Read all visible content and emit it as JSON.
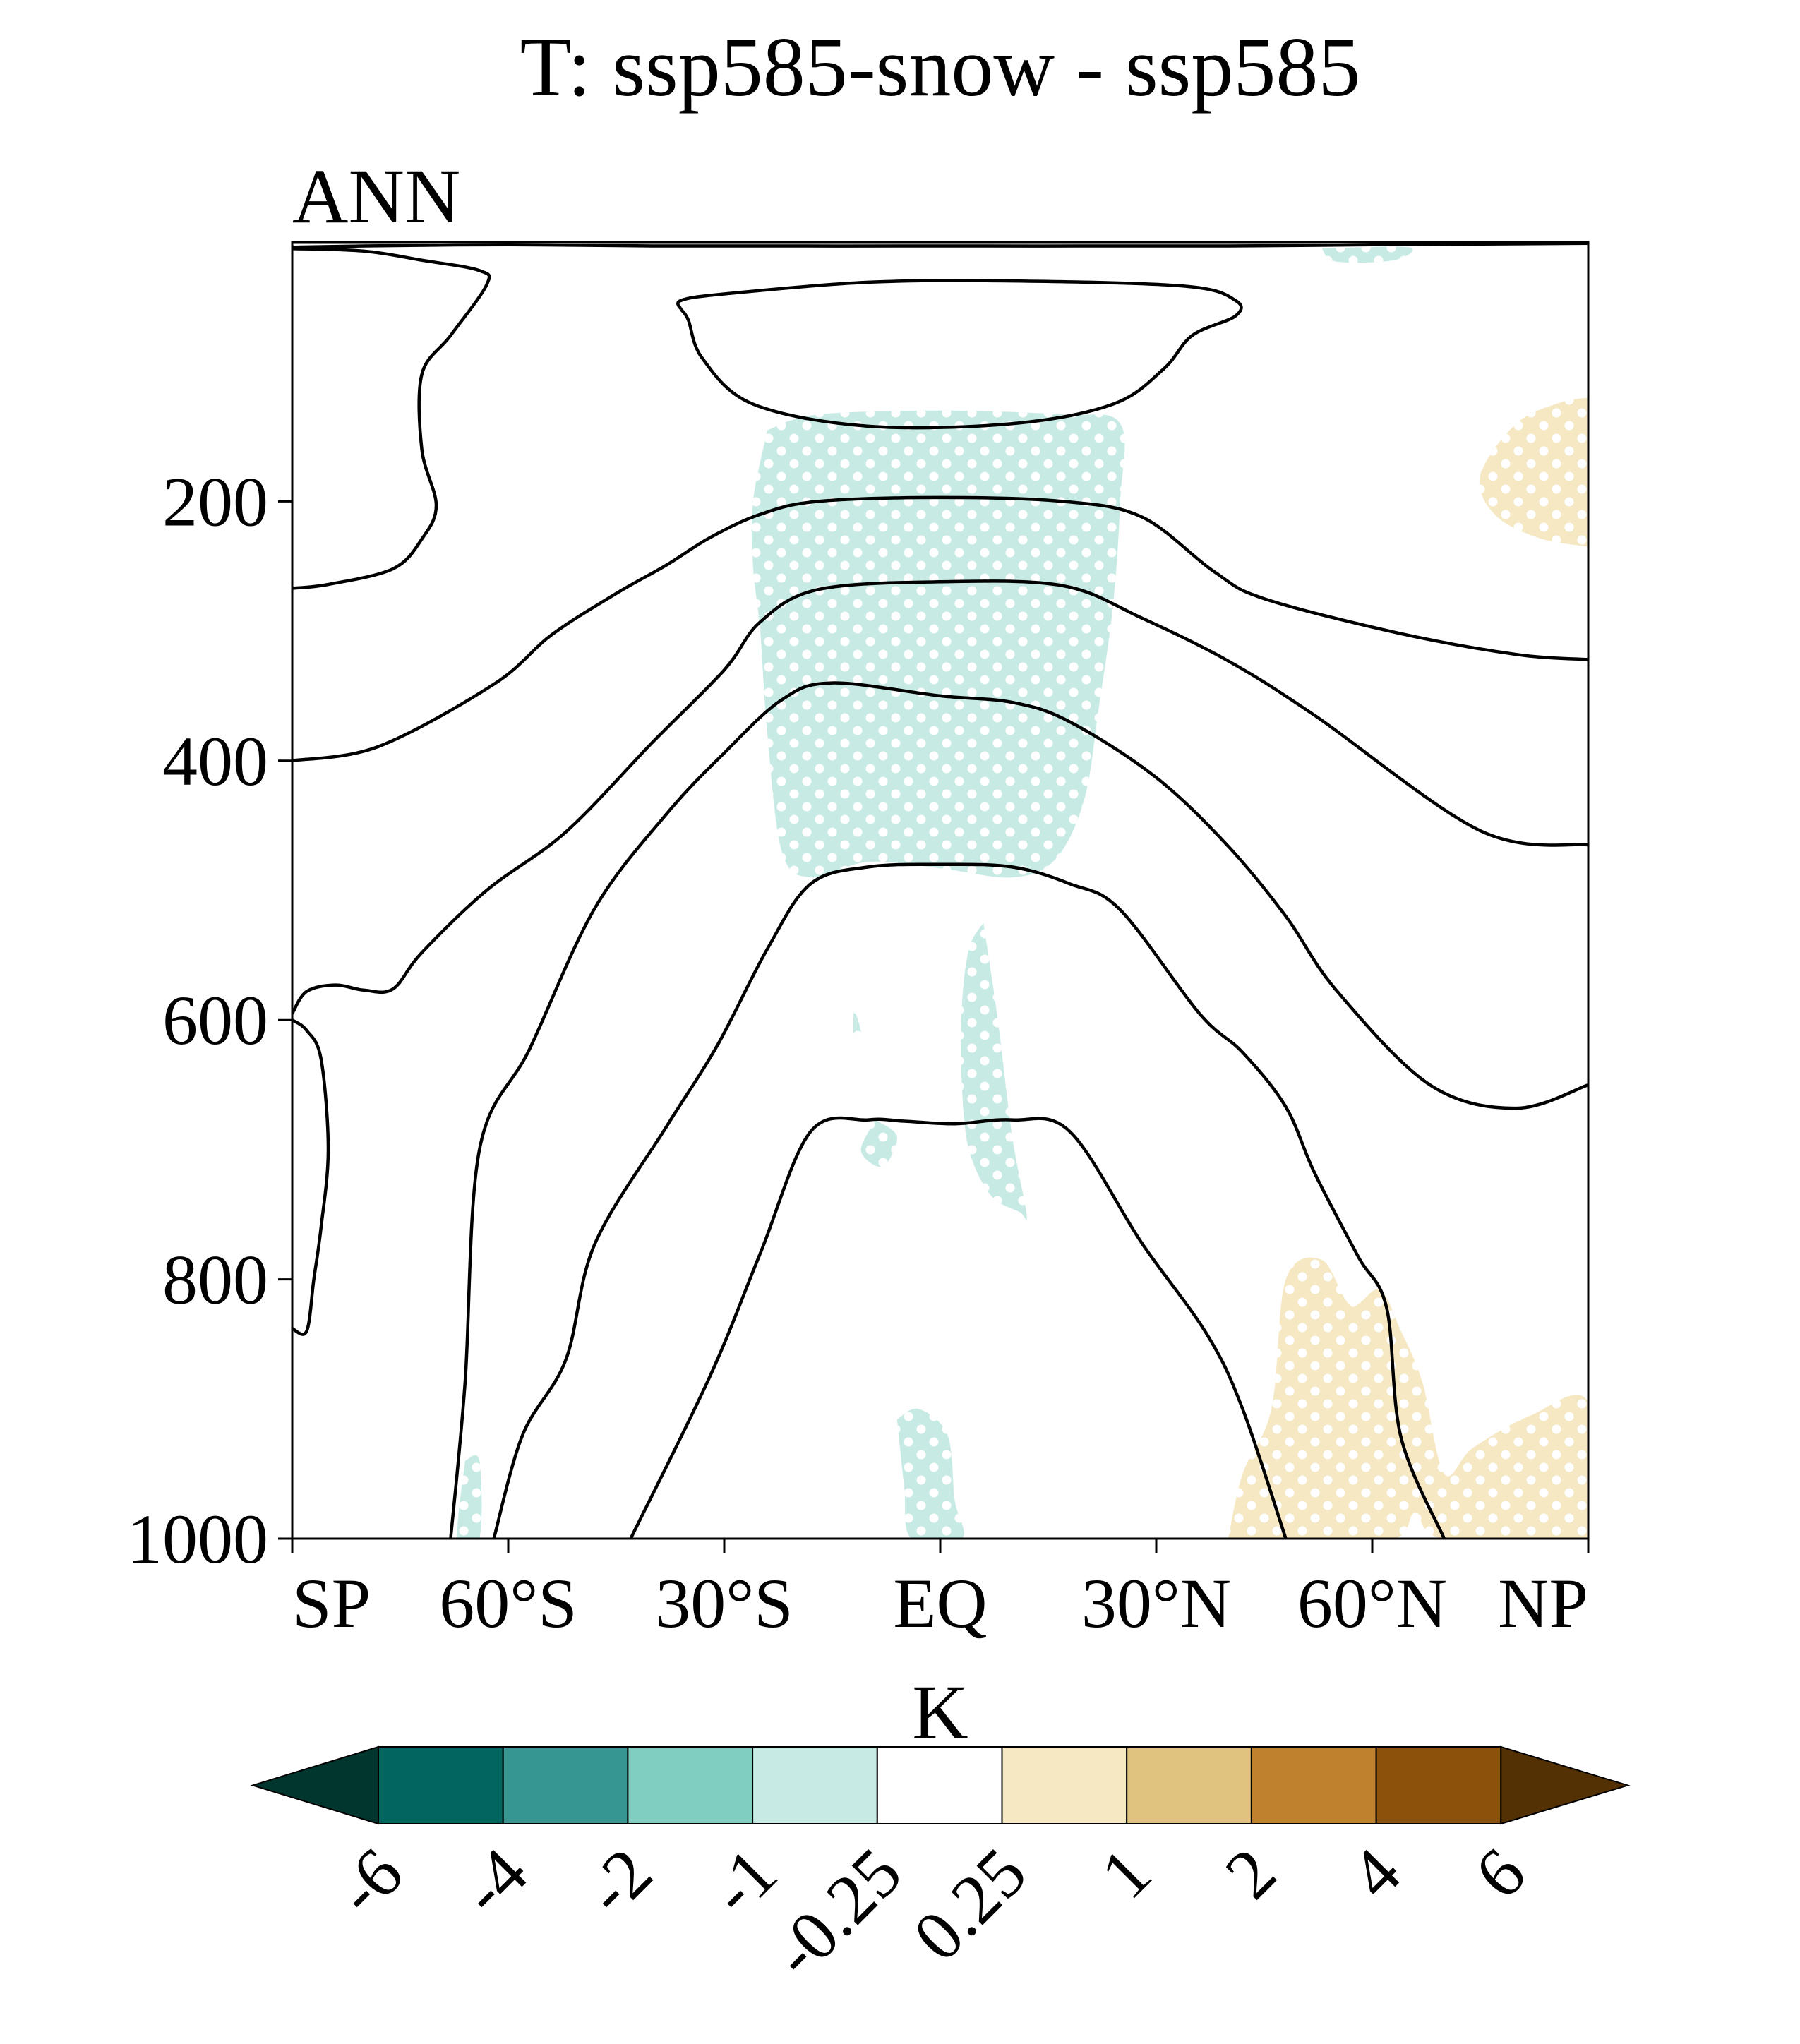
{
  "chart_data": {
    "type": "contour",
    "title": "T: ssp585-snow - ssp585",
    "subtitle": "ANN",
    "xlabel": "",
    "ylabel": "",
    "x_ticks": [
      {
        "value": -90,
        "label": "SP"
      },
      {
        "value": -60,
        "label": "60°S"
      },
      {
        "value": -30,
        "label": "30°S"
      },
      {
        "value": 0,
        "label": "EQ"
      },
      {
        "value": 30,
        "label": "30°N"
      },
      {
        "value": 60,
        "label": "60°N"
      },
      {
        "value": 90,
        "label": "NP"
      }
    ],
    "y_ticks": [
      200,
      400,
      600,
      800,
      1000
    ],
    "xlim": [
      -90,
      90
    ],
    "ylim": [
      1000,
      0
    ],
    "colorbar": {
      "label": "K",
      "levels": [
        "-6",
        "-4",
        "-2",
        "-1",
        "-0.25",
        "0.25",
        "1",
        "2",
        "4",
        "6"
      ],
      "colors": [
        "#01362f",
        "#01665e",
        "#35978f",
        "#80cdc1",
        "#c7eae5",
        "#ffffff",
        "#f6e8c3",
        "#dfc27d",
        "#bf812d",
        "#8c510a",
        "#543005"
      ],
      "extend": "both"
    },
    "contour_lines": [
      {
        "name": "upper-cap-contour",
        "points": [
          [
            -90,
            4
          ],
          [
            -80,
            3
          ],
          [
            -60,
            2
          ],
          [
            -40,
            3
          ],
          [
            0,
            3
          ],
          [
            40,
            3
          ],
          [
            60,
            2
          ],
          [
            90,
            1
          ]
        ]
      },
      {
        "name": "south-pole-upper-contour",
        "points": [
          [
            -90,
            267
          ],
          [
            -85,
            264
          ],
          [
            -76,
            252
          ],
          [
            -72,
            229
          ],
          [
            -70,
            203
          ],
          [
            -72,
            160
          ],
          [
            -72,
            102
          ],
          [
            -68,
            72
          ],
          [
            -63,
            33
          ],
          [
            -64,
            22
          ],
          [
            -72,
            14
          ],
          [
            -80,
            7
          ],
          [
            -90,
            5
          ]
        ]
      },
      {
        "name": "upper-tropical-closed-contour",
        "points": [
          [
            -36,
            52
          ],
          [
            -35,
            60
          ],
          [
            -33,
            90
          ],
          [
            -26,
            125
          ],
          [
            -10,
            142
          ],
          [
            10,
            140
          ],
          [
            24,
            125
          ],
          [
            31,
            98
          ],
          [
            35,
            72
          ],
          [
            41,
            57
          ],
          [
            41,
            45
          ],
          [
            34,
            34
          ],
          [
            10,
            30
          ],
          [
            -10,
            31
          ],
          [
            -30,
            40
          ],
          [
            -36,
            45
          ],
          [
            -36,
            52
          ]
        ]
      },
      {
        "name": "contour-level-2",
        "points": [
          [
            -90,
            400
          ],
          [
            -78,
            389
          ],
          [
            -62,
            341
          ],
          [
            -54,
            303
          ],
          [
            -45,
            271
          ],
          [
            -38,
            249
          ],
          [
            -32,
            228
          ],
          [
            -25,
            210
          ],
          [
            -17,
            200
          ],
          [
            0,
            197
          ],
          [
            17,
            200
          ],
          [
            28,
            212
          ],
          [
            38,
            254
          ],
          [
            45,
            275
          ],
          [
            64,
            302
          ],
          [
            80,
            318
          ],
          [
            90,
            322
          ]
        ]
      },
      {
        "name": "contour-level-3",
        "points": [
          [
            -90,
            595
          ],
          [
            -88,
            578
          ],
          [
            -84,
            573
          ],
          [
            -80,
            577
          ],
          [
            -76,
            576
          ],
          [
            -72,
            548
          ],
          [
            -63,
            500
          ],
          [
            -52,
            455
          ],
          [
            -40,
            386
          ],
          [
            -30,
            330
          ],
          [
            -25,
            293
          ],
          [
            -17,
            268
          ],
          [
            0,
            262
          ],
          [
            17,
            265
          ],
          [
            28,
            290
          ],
          [
            40,
            323
          ],
          [
            52,
            365
          ],
          [
            75,
            454
          ],
          [
            90,
            465
          ]
        ]
      },
      {
        "name": "contour-level-4",
        "points": [
          [
            -68,
            1000
          ],
          [
            -66,
            880
          ],
          [
            -64,
            700
          ],
          [
            -57,
            622
          ],
          [
            -48,
            514
          ],
          [
            -38,
            441
          ],
          [
            -30,
            394
          ],
          [
            -22,
            353
          ],
          [
            -15,
            340
          ],
          [
            0,
            350
          ],
          [
            10,
            355
          ],
          [
            18,
            370
          ],
          [
            30,
            413
          ],
          [
            40,
            466
          ],
          [
            48,
            520
          ],
          [
            55,
            577
          ],
          [
            68,
            650
          ],
          [
            80,
            668
          ],
          [
            90,
            650
          ]
        ]
      },
      {
        "name": "contour-level-5",
        "points": [
          [
            -62,
            1000
          ],
          [
            -58,
            920
          ],
          [
            -52,
            862
          ],
          [
            -48,
            773
          ],
          [
            -38,
            682
          ],
          [
            -31,
            620
          ],
          [
            -24,
            545
          ],
          [
            -18,
            495
          ],
          [
            -10,
            482
          ],
          [
            0,
            480
          ],
          [
            10,
            482
          ],
          [
            18,
            495
          ],
          [
            25,
            515
          ],
          [
            36,
            595
          ],
          [
            42,
            625
          ],
          [
            48,
            667
          ],
          [
            52,
            718
          ],
          [
            58,
            782
          ],
          [
            62,
            822
          ],
          [
            64,
            922
          ],
          [
            70,
            1000
          ]
        ]
      },
      {
        "name": "contour-level-6",
        "points": [
          [
            -43,
            1000
          ],
          [
            -32,
            875
          ],
          [
            -25,
            780
          ],
          [
            -18,
            686
          ],
          [
            -10,
            677
          ],
          [
            -5,
            678
          ],
          [
            2,
            680
          ],
          [
            10,
            677
          ],
          [
            18,
            686
          ],
          [
            28,
            772
          ],
          [
            37,
            842
          ],
          [
            42,
            900
          ],
          [
            48,
            1000
          ]
        ]
      },
      {
        "name": "south-pole-lower-contour",
        "points": [
          [
            -90,
            600
          ],
          [
            -88,
            608
          ],
          [
            -86,
            630
          ],
          [
            -85,
            700
          ],
          [
            -86,
            760
          ],
          [
            -87,
            800
          ],
          [
            -88,
            840
          ],
          [
            -90,
            838
          ]
        ]
      }
    ],
    "shaded_regions": [
      {
        "name": "tropical-upper-negative-region",
        "level": "-1 to -0.25",
        "color": "#c7eae5",
        "points": [
          [
            -24,
            145
          ],
          [
            -17,
            133
          ],
          [
            0,
            130
          ],
          [
            17,
            133
          ],
          [
            25,
            140
          ],
          [
            25,
            200
          ],
          [
            24,
            280
          ],
          [
            22,
            360
          ],
          [
            20,
            430
          ],
          [
            16,
            476
          ],
          [
            10,
            490
          ],
          [
            0,
            483
          ],
          [
            -10,
            478
          ],
          [
            -18,
            490
          ],
          [
            -22,
            470
          ],
          [
            -24,
            380
          ],
          [
            -25,
            300
          ],
          [
            -26,
            250
          ],
          [
            -26,
            200
          ],
          [
            -24,
            145
          ]
        ]
      },
      {
        "name": "tropical-midlevel-negative-region",
        "level": "-1 to -0.25",
        "color": "#c7eae5",
        "points": [
          [
            6,
            525
          ],
          [
            8,
            600
          ],
          [
            10,
            690
          ],
          [
            12,
            750
          ],
          [
            11,
            748
          ],
          [
            7,
            735
          ],
          [
            4,
            700
          ],
          [
            3,
            650
          ],
          [
            3,
            590
          ],
          [
            4,
            545
          ],
          [
            6,
            525
          ]
        ]
      },
      {
        "name": "small-negative-patch-1",
        "level": "-1 to -0.25",
        "color": "#c7eae5",
        "points": [
          [
            -9,
            677
          ],
          [
            -6,
            690
          ],
          [
            -8,
            713
          ],
          [
            -11,
            701
          ],
          [
            -9,
            677
          ]
        ]
      },
      {
        "name": "small-negative-patch-2",
        "level": "-1 to -0.25",
        "color": "#c7eae5",
        "points": [
          [
            -12,
            590
          ],
          [
            -11,
            610
          ],
          [
            -12,
            613
          ],
          [
            -12,
            590
          ]
        ]
      },
      {
        "name": "near-surface-negative-patch",
        "level": "-1 to -0.25",
        "color": "#c7eae5",
        "points": [
          [
            -6,
            908
          ],
          [
            -3,
            900
          ],
          [
            1,
            920
          ],
          [
            2,
            970
          ],
          [
            3,
            1000
          ],
          [
            -4,
            1000
          ],
          [
            -5,
            960
          ],
          [
            -6,
            908
          ]
        ]
      },
      {
        "name": "south-surface-negative-patch",
        "level": "-1 to -0.25",
        "color": "#c7eae5",
        "points": [
          [
            -66,
            940
          ],
          [
            -64,
            940
          ],
          [
            -64,
            1000
          ],
          [
            -67,
            1000
          ],
          [
            -66,
            940
          ]
        ]
      },
      {
        "name": "top-negative-strip",
        "level": "-1 to -0.25",
        "color": "#c7eae5",
        "points": [
          [
            53,
            5
          ],
          [
            65,
            4
          ],
          [
            63,
            14
          ],
          [
            55,
            15
          ],
          [
            53,
            5
          ]
        ]
      },
      {
        "name": "northern-upper-positive-region",
        "level": "0.25 to 1",
        "color": "#f6e8c3",
        "points": [
          [
            90,
            120
          ],
          [
            86,
            124
          ],
          [
            80,
            140
          ],
          [
            75,
            180
          ],
          [
            77,
            210
          ],
          [
            83,
            228
          ],
          [
            90,
            235
          ]
        ]
      },
      {
        "name": "northern-surface-positive-region",
        "level": "0.25 to 1",
        "color": "#f6e8c3",
        "points": [
          [
            40,
            1000
          ],
          [
            42,
            950
          ],
          [
            46,
            900
          ],
          [
            48,
            800
          ],
          [
            53,
            785
          ],
          [
            57,
            820
          ],
          [
            61,
            808
          ],
          [
            64,
            840
          ],
          [
            67,
            880
          ],
          [
            70,
            950
          ],
          [
            74,
            930
          ],
          [
            82,
            905
          ],
          [
            90,
            895
          ],
          [
            90,
            1000
          ],
          [
            70,
            1000
          ],
          [
            66,
            980
          ],
          [
            63,
            1000
          ],
          [
            50,
            1000
          ],
          [
            40,
            1000
          ]
        ]
      }
    ]
  }
}
